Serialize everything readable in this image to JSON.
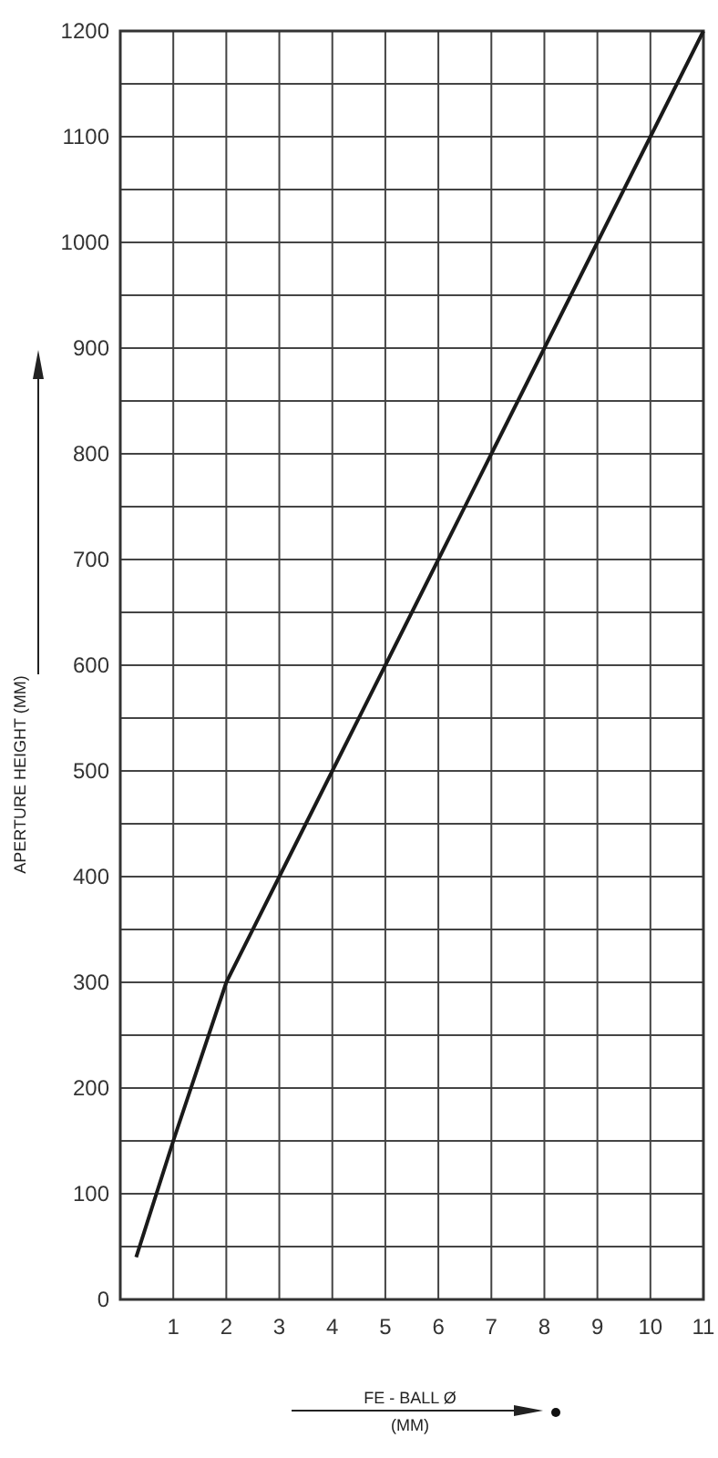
{
  "chart_data": {
    "type": "line",
    "xlabel": "FE - BALL Ø\n(MM)",
    "ylabel": "APERTURE HEIGHT (MM)",
    "x": [
      0.3,
      1,
      2,
      3,
      4,
      5,
      6,
      7,
      8,
      9,
      10,
      11
    ],
    "series": [
      {
        "color": "#1a1a1a",
        "values": [
          40,
          150,
          300,
          400,
          500,
          600,
          700,
          800,
          900,
          1000,
          1100,
          1200
        ]
      }
    ],
    "xlim": [
      0,
      11
    ],
    "xticks": [
      1,
      2,
      3,
      4,
      5,
      6,
      7,
      8,
      9,
      10,
      11
    ],
    "ylim": [
      0,
      1200
    ],
    "yticks": [
      0,
      {
        "value": 50,
        "label": null
      },
      100,
      {
        "value": 150,
        "label": null
      },
      200,
      {
        "value": 250,
        "label": null
      },
      300,
      {
        "value": 350,
        "label": null
      },
      400,
      {
        "value": 450,
        "label": null
      },
      500,
      {
        "value": 550,
        "label": null
      },
      600,
      {
        "value": 650,
        "label": null
      },
      700,
      {
        "value": 750,
        "label": null
      },
      800,
      {
        "value": 850,
        "label": null
      },
      900,
      {
        "value": 950,
        "label": null
      },
      1000,
      {
        "value": 1050,
        "label": null
      },
      1100,
      {
        "value": 1150,
        "label": null
      },
      1200
    ],
    "grid": true,
    "marker": "none",
    "line_style": "solid"
  }
}
